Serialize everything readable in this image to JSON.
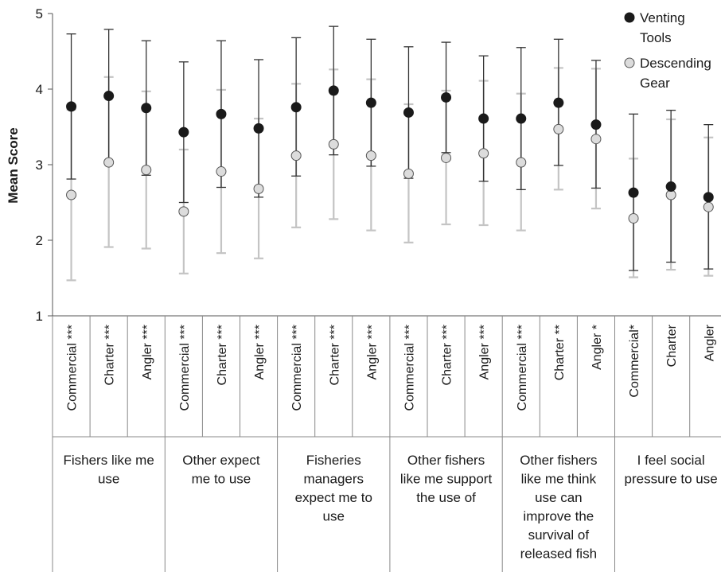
{
  "chart_data": {
    "type": "scatter",
    "ylabel": "Mean Score",
    "ylim": [
      1,
      5
    ],
    "yticks": [
      "1",
      "2",
      "3",
      "4",
      "5"
    ],
    "grid": false,
    "legend_position": "top-right",
    "categories": [
      "Commercial ***",
      "Charter ***",
      "Angler ***",
      "Commercial ***",
      "Charter ***",
      "Angler ***",
      "Commercial ***",
      "Charter ***",
      "Angler ***",
      "Commercial ***",
      "Charter ***",
      "Angler ***",
      "Commercial ***",
      "Charter **",
      "Angler *",
      "Commercial*",
      "Charter",
      "Angler"
    ],
    "groups": [
      {
        "label_lines": [
          "Fishers like me",
          "use"
        ],
        "start": 0,
        "count": 3
      },
      {
        "label_lines": [
          "Other expect",
          "me to use"
        ],
        "start": 3,
        "count": 3
      },
      {
        "label_lines": [
          "Fisheries",
          "managers",
          "expect me to",
          "use"
        ],
        "start": 6,
        "count": 3
      },
      {
        "label_lines": [
          "Other fishers",
          "like me support",
          "the use of"
        ],
        "start": 9,
        "count": 3
      },
      {
        "label_lines": [
          "Other fishers",
          "like me think",
          "use can",
          "improve the",
          "survival of",
          "released fish"
        ],
        "start": 12,
        "count": 3
      },
      {
        "label_lines": [
          "I feel social",
          "pressure to use"
        ],
        "start": 15,
        "count": 3
      }
    ],
    "series": [
      {
        "name": "Venting Tools",
        "legend_lines": [
          "Venting",
          "Tools"
        ],
        "color": "#1a1a1a",
        "errorbar_color": "#333333",
        "values": [
          3.77,
          3.91,
          3.75,
          3.43,
          3.67,
          3.48,
          3.76,
          3.98,
          3.82,
          3.69,
          3.89,
          3.61,
          3.61,
          3.82,
          3.53,
          2.63,
          2.71,
          2.57
        ],
        "upper": [
          4.73,
          4.79,
          4.64,
          4.36,
          4.64,
          4.39,
          4.68,
          4.83,
          4.66,
          4.56,
          4.62,
          4.44,
          4.55,
          4.66,
          4.38,
          3.67,
          3.72,
          3.53
        ],
        "lower": [
          2.81,
          3.03,
          2.86,
          2.5,
          2.7,
          2.57,
          2.85,
          3.13,
          2.98,
          2.82,
          3.16,
          2.78,
          2.67,
          2.99,
          2.69,
          1.6,
          1.71,
          1.62
        ]
      },
      {
        "name": "Descending Gear",
        "legend_lines": [
          "Descending",
          "Gear"
        ],
        "color": "#dcdcdc",
        "errorbar_color": "#c4c4c4",
        "values": [
          2.6,
          3.03,
          2.93,
          2.38,
          2.91,
          2.68,
          3.12,
          3.27,
          3.12,
          2.88,
          3.09,
          3.15,
          3.03,
          3.47,
          3.34,
          2.29,
          2.6,
          2.44
        ],
        "upper": [
          3.73,
          4.16,
          3.97,
          3.2,
          3.99,
          3.61,
          4.07,
          4.26,
          4.13,
          3.8,
          3.98,
          4.11,
          3.94,
          4.28,
          4.27,
          3.08,
          3.6,
          3.36
        ],
        "lower": [
          1.47,
          1.91,
          1.89,
          1.56,
          1.83,
          1.76,
          2.17,
          2.28,
          2.13,
          1.97,
          2.21,
          2.2,
          2.13,
          2.67,
          2.42,
          1.51,
          1.61,
          1.53
        ]
      }
    ]
  }
}
